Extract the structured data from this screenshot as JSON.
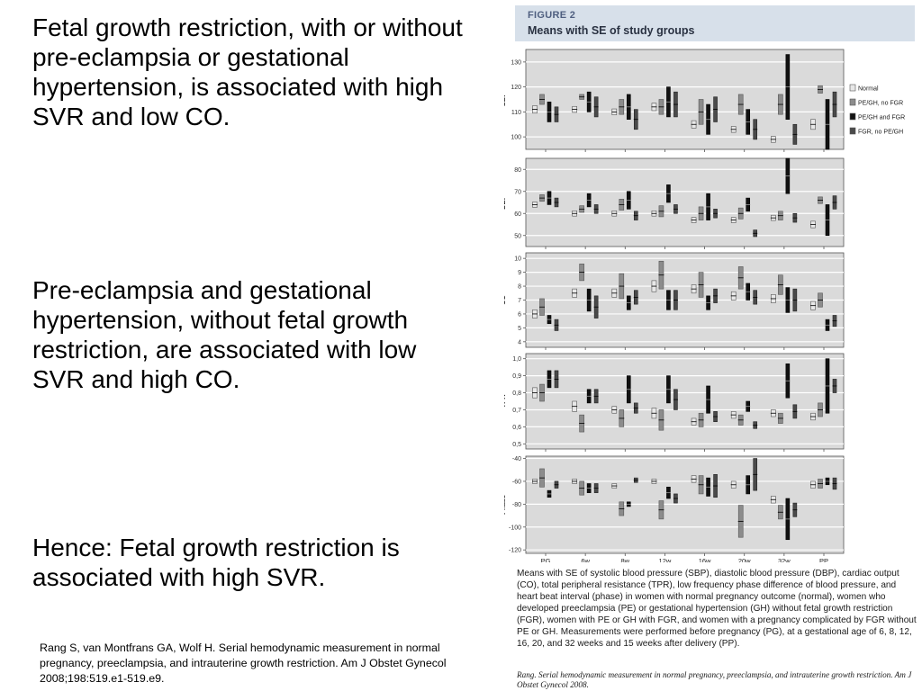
{
  "slide": {
    "statements": [
      "Fetal growth restriction, with or without pre-eclampsia or gestational hypertension, is associated with high SVR and low CO.",
      "Pre-eclampsia and gestational hypertension, without fetal growth restriction, are associated with low SVR and high CO.",
      "Hence: Fetal growth restriction is associated with high SVR."
    ],
    "reference": "Rang S, van Montfrans GA, Wolf H. Serial hemodynamic measurement in normal pregnancy, preeclampsia, and intrauterine growth restriction. Am J Obstet Gynecol 2008;198:519.e1-519.e9."
  },
  "figure": {
    "label": "FIGURE 2",
    "title": "Means with SE of study groups",
    "caption": "Means with SE of systolic blood pressure (SBP), diastolic blood pressure (DBP), cardiac output (CO), total peripheral resistance (TPR), low frequency phase difference of blood pressure, and heart beat interval (phase) in women with normal pregnancy outcome (normal), women who developed preeclampsia (PE) or gestational hypertension (GH) without fetal growth restriction (FGR), women with PE or GH with FGR, and women with a pregnancy complicated by FGR without PE or GH. Measurements were performed before pregnancy (PG), at a gestational age of 6, 8, 12, 16, 20, and 32 weeks and 15 weeks after delivery (PP).",
    "caption_reference": "Rang. Serial hemodynamic measurement in normal pregnancy, preeclampsia, and intrauterine growth restriction. Am J Obstet Gynecol 2008."
  },
  "chart_data": {
    "type": "scatter",
    "categories": [
      "PG",
      "6w",
      "8w",
      "12w",
      "16w",
      "20w",
      "32w",
      "PP"
    ],
    "legend": {
      "placement": "right",
      "entries": [
        {
          "name": "Normal",
          "color": "#e8e8e8"
        },
        {
          "name": "PE/GH, no FGR",
          "color": "#8c8c8c"
        },
        {
          "name": "PE/GH and FGR",
          "color": "#111111"
        },
        {
          "name": "FGR, no PE/GH",
          "color": "#4a4a4a"
        }
      ]
    },
    "panels": [
      {
        "ylabel": "SBP",
        "ylim": [
          95,
          135
        ],
        "ticks": [
          100,
          110,
          120,
          130
        ],
        "tick_labels": [
          "100",
          "110",
          "120",
          "130"
        ],
        "series": [
          {
            "mean": [
              111,
              111,
              110,
              112,
              105,
              103,
              99,
              105
            ],
            "se": [
              1.5,
              1.2,
              1.2,
              1.5,
              1.5,
              1.2,
              1.2,
              2
            ]
          },
          {
            "mean": [
              115,
              116,
              112,
              112,
              110,
              113,
              113,
              119
            ],
            "se": [
              2,
              1,
              3,
              3,
              5,
              4,
              4,
              1.5
            ]
          },
          {
            "mean": [
              110,
              114,
              112,
              114,
              107,
              106,
              120,
              105
            ],
            "se": [
              4,
              4,
              5,
              6,
              6,
              5,
              13,
              10
            ]
          },
          {
            "mean": [
              109,
              112,
              107,
              113,
              111,
              103,
              101,
              113
            ],
            "se": [
              3,
              4,
              4,
              5,
              5,
              4,
              4,
              5
            ]
          }
        ]
      },
      {
        "ylabel": "DBP",
        "ylim": [
          45,
          85
        ],
        "ticks": [
          50,
          60,
          70,
          80
        ],
        "tick_labels": [
          "50",
          "60",
          "70",
          "80"
        ],
        "series": [
          {
            "mean": [
              64,
              60,
              60,
              60,
              57,
              57,
              58,
              55
            ],
            "se": [
              1.2,
              1.2,
              1.2,
              1.2,
              1.2,
              1.2,
              1.2,
              1.5
            ]
          },
          {
            "mean": [
              67,
              62,
              64,
              61,
              60,
              60,
              59,
              66
            ],
            "se": [
              1.5,
              1.5,
              2.5,
              2.5,
              3,
              2.5,
              2,
              1.5
            ]
          },
          {
            "mean": [
              67,
              66,
              66,
              69,
              63,
              64,
              77,
              57
            ],
            "se": [
              3,
              3,
              4,
              4,
              6,
              3,
              8,
              7
            ]
          },
          {
            "mean": [
              65,
              62,
              59,
              62,
              60,
              51,
              58,
              65
            ],
            "se": [
              2,
              2,
              2,
              2,
              2,
              1.5,
              2,
              3
            ]
          }
        ]
      },
      {
        "ylabel": "CO",
        "ylim": [
          3.6,
          10.4
        ],
        "ticks": [
          4,
          5,
          6,
          7,
          8,
          9,
          10
        ],
        "tick_labels": [
          "4",
          "5",
          "6",
          "7",
          "8",
          "9",
          "10"
        ],
        "series": [
          {
            "mean": [
              6,
              7.5,
              7.5,
              8,
              7.8,
              7.3,
              7.1,
              6.6
            ],
            "se": [
              0.3,
              0.3,
              0.3,
              0.4,
              0.3,
              0.3,
              0.3,
              0.3
            ]
          },
          {
            "mean": [
              6.5,
              9,
              8,
              8.8,
              8.1,
              8.6,
              8.1,
              7
            ],
            "se": [
              0.6,
              0.6,
              0.9,
              1,
              0.9,
              0.8,
              0.7,
              0.5
            ]
          },
          {
            "mean": [
              5.6,
              7,
              6.8,
              7,
              6.8,
              7.6,
              7,
              5.2
            ],
            "se": [
              0.3,
              0.8,
              0.5,
              0.7,
              0.5,
              0.6,
              0.9,
              0.4
            ]
          },
          {
            "mean": [
              5.2,
              6.5,
              7.2,
              7,
              7.3,
              7.2,
              7,
              5.5
            ],
            "se": [
              0.4,
              0.8,
              0.5,
              0.7,
              0.5,
              0.5,
              0.8,
              0.4
            ]
          }
        ]
      },
      {
        "ylabel": "TPR",
        "ylim": [
          0.47,
          1.03
        ],
        "ticks": [
          0.5,
          0.6,
          0.7,
          0.8,
          0.9,
          1.0
        ],
        "tick_labels": [
          "0,5",
          "0,6",
          "0,7",
          "0,8",
          "0,9",
          "1,0"
        ],
        "series": [
          {
            "mean": [
              0.8,
              0.72,
              0.7,
              0.68,
              0.63,
              0.67,
              0.68,
              0.66
            ],
            "se": [
              0.03,
              0.03,
              0.02,
              0.03,
              0.02,
              0.02,
              0.02,
              0.02
            ]
          },
          {
            "mean": [
              0.8,
              0.62,
              0.65,
              0.64,
              0.64,
              0.64,
              0.65,
              0.7
            ],
            "se": [
              0.05,
              0.05,
              0.05,
              0.06,
              0.04,
              0.03,
              0.03,
              0.04
            ]
          },
          {
            "mean": [
              0.88,
              0.78,
              0.82,
              0.82,
              0.76,
              0.72,
              0.87,
              0.84
            ],
            "se": [
              0.05,
              0.04,
              0.08,
              0.08,
              0.08,
              0.03,
              0.1,
              0.16
            ]
          },
          {
            "mean": [
              0.88,
              0.78,
              0.71,
              0.76,
              0.66,
              0.61,
              0.69,
              0.84
            ],
            "se": [
              0.05,
              0.04,
              0.03,
              0.06,
              0.03,
              0.02,
              0.04,
              0.04
            ]
          }
        ]
      },
      {
        "ylabel": "Phase",
        "ylim": [
          -123,
          -38
        ],
        "ticks": [
          -120,
          -100,
          -80,
          -60,
          -40
        ],
        "tick_labels": [
          "-120",
          "-100",
          "-80",
          "-60",
          "-40"
        ],
        "series": [
          {
            "mean": [
              -60,
              -60,
              -64,
              -60,
              -58,
              -63,
              -76,
              -63
            ],
            "se": [
              2,
              2,
              2,
              2,
              3,
              3,
              3,
              3
            ]
          },
          {
            "mean": [
              -57,
              -66,
              -84,
              -85,
              -63,
              -95,
              -87,
              -62
            ],
            "se": [
              8,
              6,
              6,
              8,
              8,
              14,
              6,
              4
            ]
          },
          {
            "mean": [
              -71,
              -66,
              -80,
              -70,
              -65,
              -63,
              -93,
              -60
            ],
            "se": [
              3,
              4,
              2,
              5,
              8,
              8,
              18,
              3
            ]
          },
          {
            "mean": [
              -63,
              -66,
              -59,
              -75,
              -64,
              -54,
              -85,
              -62
            ],
            "se": [
              3,
              4,
              2,
              4,
              10,
              14,
              6,
              5
            ]
          }
        ]
      }
    ]
  }
}
